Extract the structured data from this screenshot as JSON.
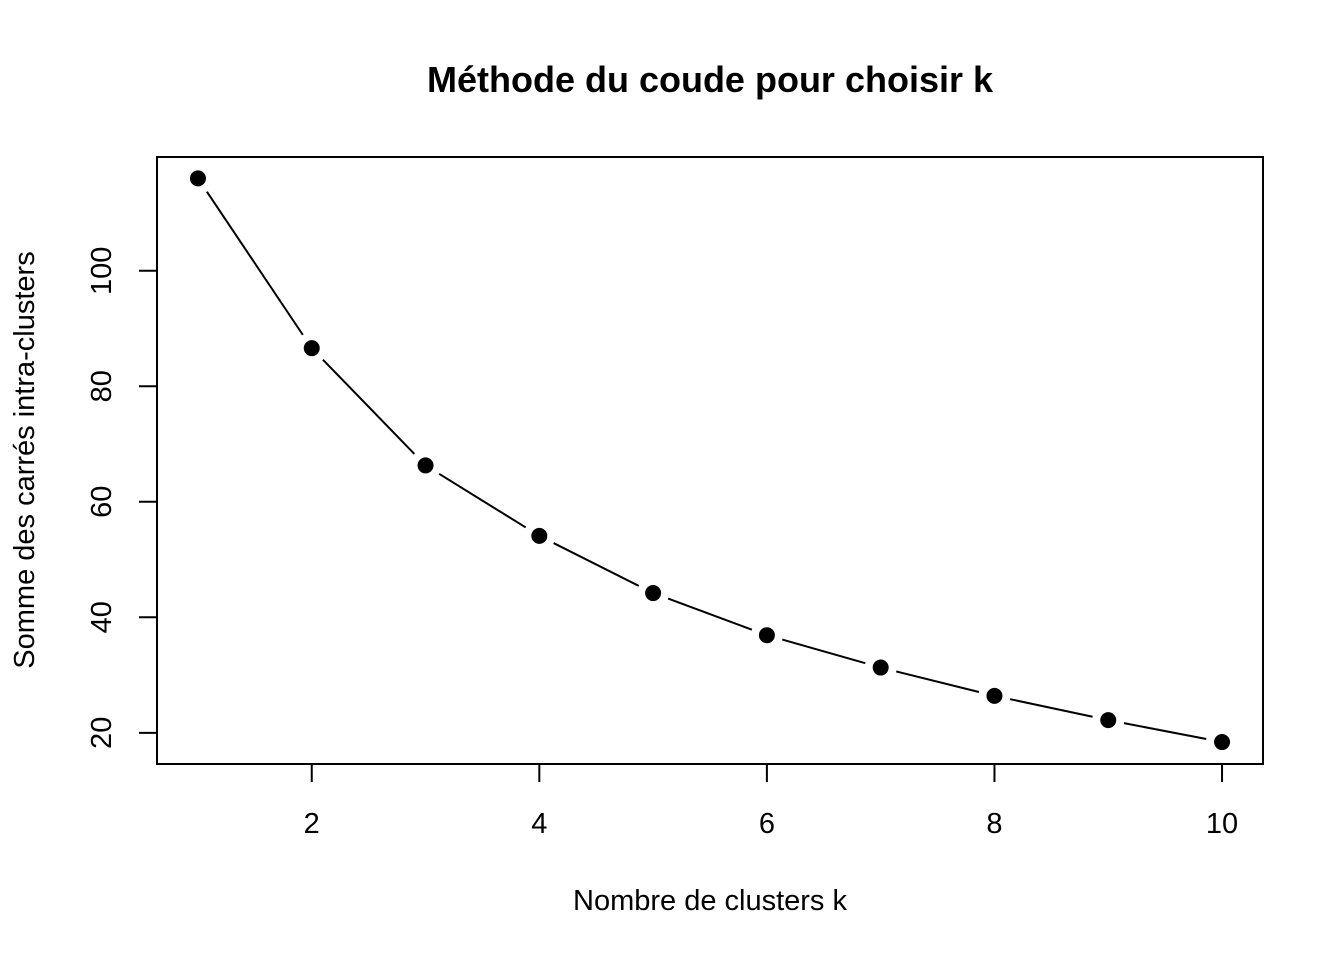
{
  "chart_data": {
    "type": "line",
    "title": "Méthode du coude pour choisir k",
    "xlabel": "Nombre de clusters k",
    "ylabel": "Somme des carrés intra-clusters",
    "x": [
      1,
      2,
      3,
      4,
      5,
      6,
      7,
      8,
      9,
      10
    ],
    "values": [
      116.0,
      86.6,
      66.3,
      54.1,
      44.2,
      36.9,
      31.3,
      26.4,
      22.2,
      18.4
    ],
    "xlim": [
      0.64,
      10.36
    ],
    "ylim": [
      14.6,
      119.7
    ],
    "xticks": [
      2,
      4,
      6,
      8,
      10
    ],
    "yticks": [
      20,
      40,
      60,
      80,
      100
    ],
    "marker": "filled-circle",
    "line_style": "broken line between points",
    "grid": false,
    "legend": "none",
    "colors": {
      "line": "#000000",
      "points": "#000000",
      "background": "#ffffff"
    }
  }
}
